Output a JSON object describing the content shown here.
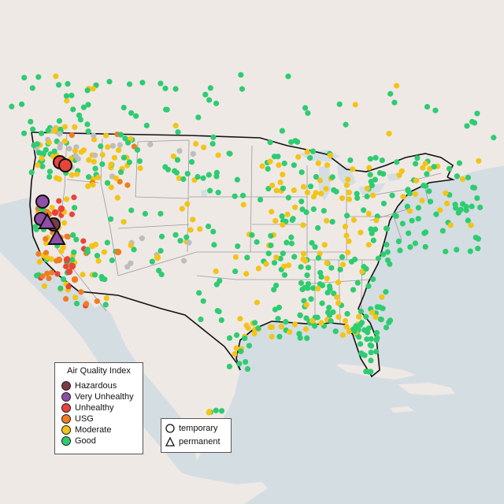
{
  "legend": {
    "title": "Air Quality Index",
    "categories": [
      {
        "label": "Hazardous",
        "color": "#7e3a46"
      },
      {
        "label": "Very Unhealthy",
        "color": "#8f4fa6"
      },
      {
        "label": "Unhealthy",
        "color": "#e8443a"
      },
      {
        "label": "USG",
        "color": "#ef7d22"
      },
      {
        "label": "Moderate",
        "color": "#f2c418"
      },
      {
        "label": "Good",
        "color": "#2ecc71"
      }
    ],
    "no_data_color": "#bdbdbd",
    "types": [
      {
        "label": "temporary",
        "symbol": "circle-icon"
      },
      {
        "label": "permanent",
        "symbol": "triangle-icon"
      }
    ]
  },
  "colors": {
    "land": "#efe9e6",
    "water": "#d4dde2",
    "border": "#111111",
    "state_border": "#9a9a9a"
  }
}
